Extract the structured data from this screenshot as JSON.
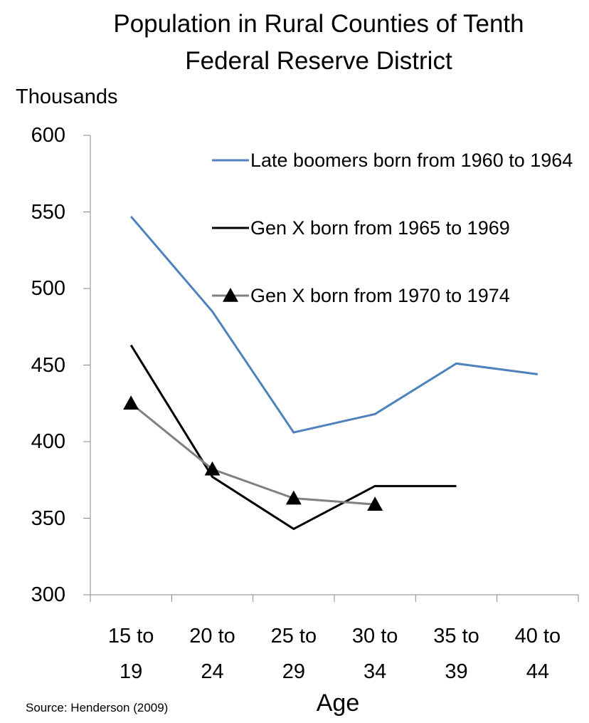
{
  "chart_data": {
    "type": "line",
    "title": "Population in Rural Counties of Tenth Federal Reserve District",
    "y_axis_label": "Thousands",
    "x_axis_label": "Age",
    "source": "Source: Henderson (2009)",
    "categories": [
      "15 to 19",
      "20 to 24",
      "25 to 29",
      "30 to 34",
      "35 to 39",
      "40 to 44"
    ],
    "series": [
      {
        "name": "Late boomers born from 1960 to 1964",
        "color": "#4f81bd",
        "marker": "none",
        "values": [
          547,
          485,
          406,
          418,
          451,
          444
        ]
      },
      {
        "name": "Gen X born from 1965 to 1969",
        "color": "#000000",
        "marker": "none",
        "values": [
          463,
          377,
          343,
          371,
          371,
          null
        ]
      },
      {
        "name": "Gen X born from 1970 to 1974",
        "color": "#808080",
        "marker": "triangle",
        "values": [
          425,
          382,
          363,
          359,
          null,
          null
        ]
      }
    ],
    "ylim": [
      300,
      600
    ],
    "yticks": [
      300,
      350,
      400,
      450,
      500,
      550,
      600
    ],
    "grid": false,
    "legend": "top-right"
  }
}
